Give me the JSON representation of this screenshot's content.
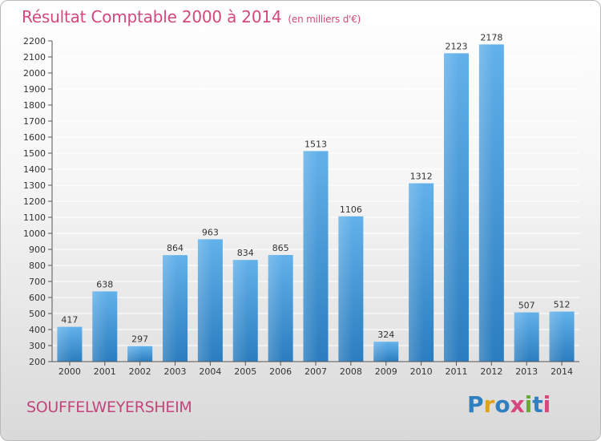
{
  "title": "Résultat Comptable 2000 à 2014",
  "subtitle": "(en milliers d'€)",
  "commune": "SOUFFELWEYERSHEIM",
  "brand": {
    "letters": [
      "P",
      "r",
      "o",
      "x",
      "i",
      "t",
      "i"
    ],
    "colors": [
      "#2f7fc1",
      "#e0a21c",
      "#2f7fc1",
      "#d4487d",
      "#6aa83a",
      "#2f7fc1",
      "#d4487d"
    ]
  },
  "colors": {
    "bar_top": "#62b1ea",
    "bar_bottom": "#2b7dbf",
    "title": "#d4487d",
    "grid": "#ffffff"
  },
  "chart_data": {
    "type": "bar",
    "categories": [
      "2000",
      "2001",
      "2002",
      "2003",
      "2004",
      "2005",
      "2006",
      "2007",
      "2008",
      "2009",
      "2010",
      "2011",
      "2012",
      "2013",
      "2014"
    ],
    "values": [
      417,
      638,
      297,
      864,
      963,
      834,
      865,
      1513,
      1106,
      324,
      1312,
      2123,
      2178,
      507,
      512
    ],
    "yticks": [
      200,
      300,
      400,
      500,
      600,
      700,
      800,
      900,
      1000,
      1100,
      1200,
      1300,
      1400,
      1500,
      1600,
      1700,
      1800,
      1900,
      2000,
      2100,
      2200
    ],
    "ylim": [
      200,
      2200
    ],
    "grid": true,
    "data_labels": true,
    "xlabel": "",
    "ylabel": ""
  }
}
